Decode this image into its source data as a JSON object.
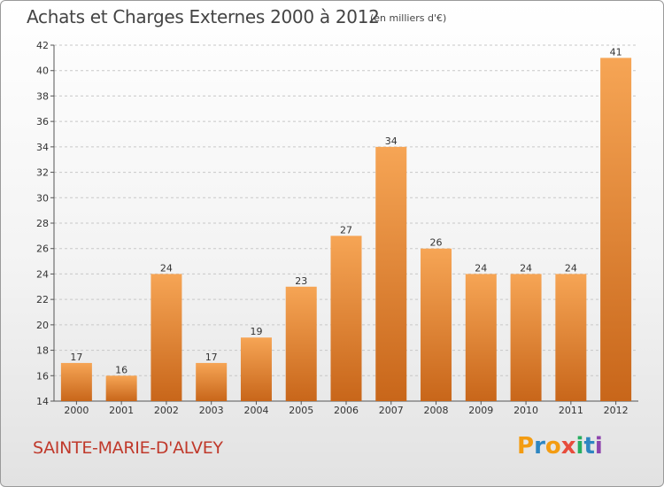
{
  "header": {
    "title": "Achats et Charges Externes 2000 à 2012",
    "subtitle": "(en milliers d'€)"
  },
  "footer": {
    "commune": "SAINTE-MARIE-D'ALVEY",
    "logo": "Proxiti"
  },
  "colors": {
    "bar_light": "#f6a555",
    "bar_dark": "#c8661a",
    "commune_text": "#c0392b",
    "logo_letters": [
      "#f39c12",
      "#2e86c1",
      "#f39c12",
      "#e74c3c",
      "#27ae60",
      "#2e86c1",
      "#8e44ad"
    ]
  },
  "chart_data": {
    "type": "bar",
    "title": "Achats et Charges Externes 2000 à 2012",
    "subtitle": "(en milliers d'€)",
    "xlabel": "",
    "ylabel": "",
    "categories": [
      "2000",
      "2001",
      "2002",
      "2003",
      "2004",
      "2005",
      "2006",
      "2007",
      "2008",
      "2009",
      "2010",
      "2011",
      "2012"
    ],
    "values": [
      17,
      16,
      24,
      17,
      19,
      23,
      27,
      34,
      26,
      24,
      24,
      24,
      41
    ],
    "ylim": [
      14,
      42
    ],
    "yticks": [
      14,
      16,
      18,
      20,
      22,
      24,
      26,
      28,
      30,
      32,
      34,
      36,
      38,
      40,
      42
    ],
    "grid": true,
    "legend": "none"
  }
}
